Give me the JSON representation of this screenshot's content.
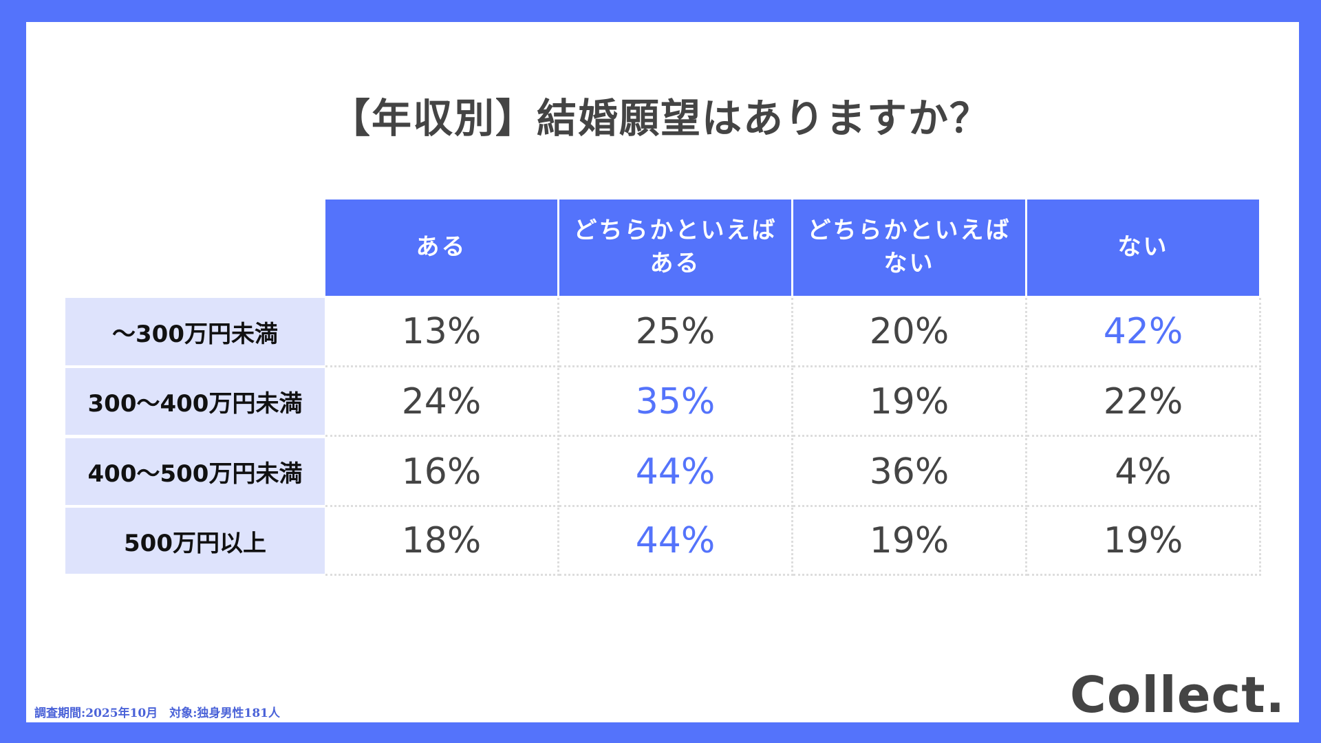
{
  "title": "【年収別】結婚願望はありますか？",
  "columns": [
    "ある",
    "どちらかといえば\nある",
    "どちらかといえば\nない",
    "ない"
  ],
  "rows": [
    {
      "label": "〜300万円未満",
      "values": [
        "13%",
        "25%",
        "20%",
        "42%"
      ],
      "highlight": 3
    },
    {
      "label": "300〜400万円未満",
      "values": [
        "24%",
        "35%",
        "19%",
        "22%"
      ],
      "highlight": 1
    },
    {
      "label": "400〜500万円未満",
      "values": [
        "16%",
        "44%",
        "36%",
        "4%"
      ],
      "highlight": 1
    },
    {
      "label": "500万円以上",
      "values": [
        "18%",
        "44%",
        "19%",
        "19%"
      ],
      "highlight": 1
    }
  ],
  "footer": "調査期間:2025年10月　対象:独身男性181人",
  "logo": "Collect.",
  "colors": {
    "accent": "#5473fb",
    "row_label_bg": "#dee3fc"
  }
}
